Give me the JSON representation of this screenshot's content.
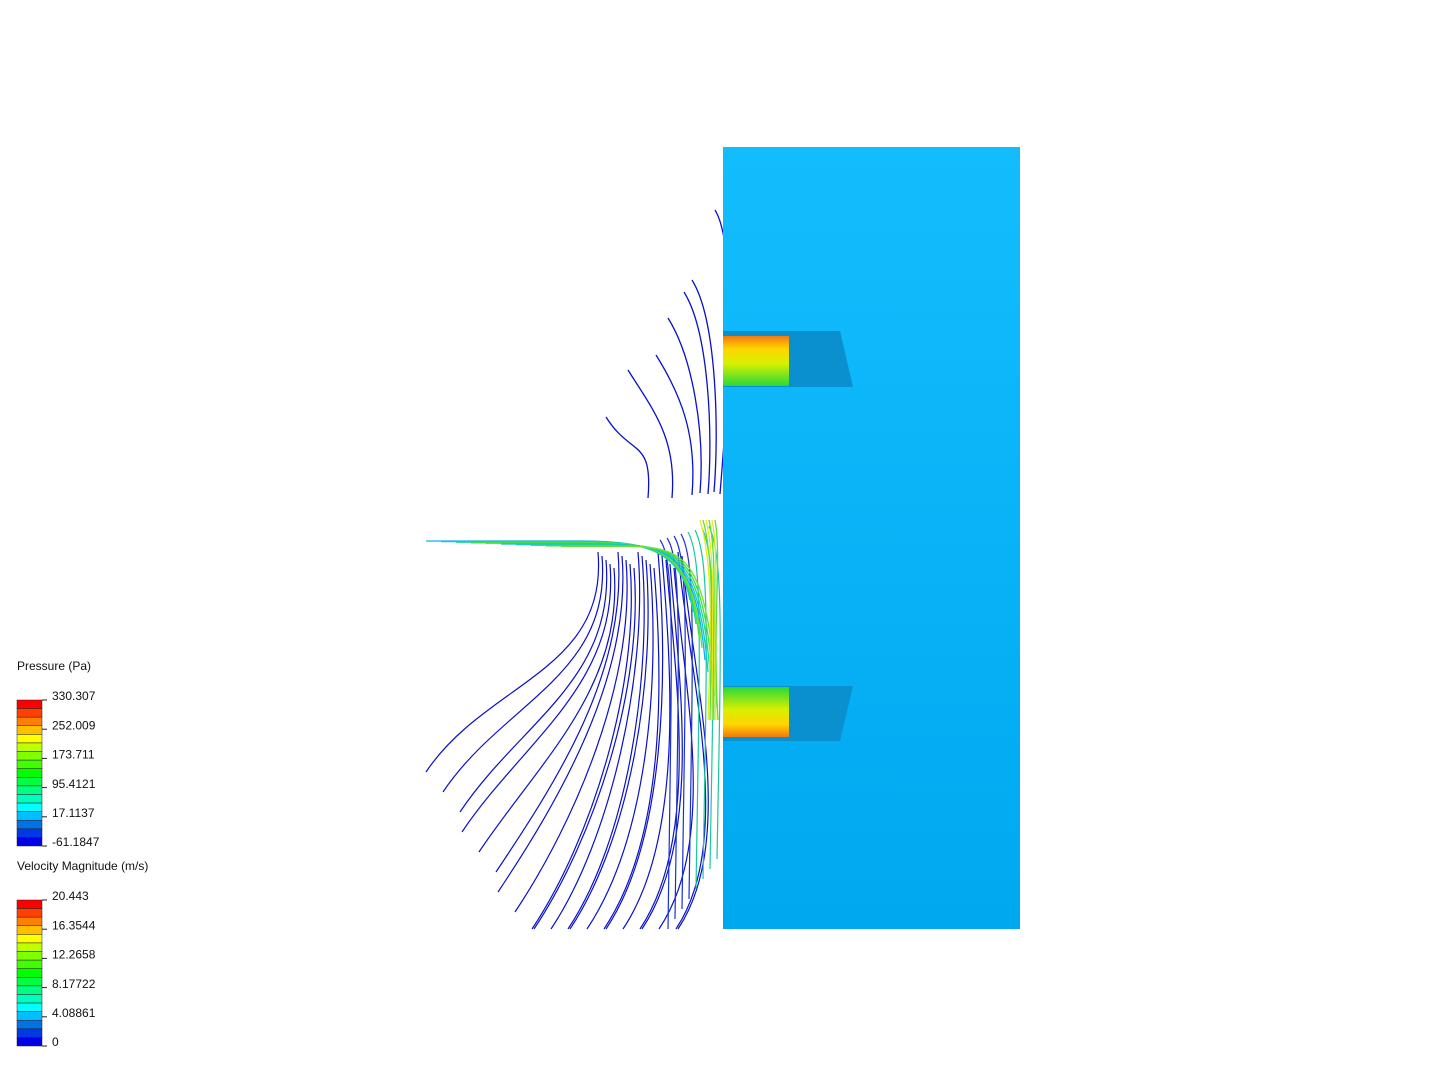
{
  "legends": [
    {
      "title": "Pressure (Pa)",
      "ticks": [
        330.307,
        252.009,
        173.711,
        95.4121,
        17.1137,
        -61.1847
      ]
    },
    {
      "title": "Velocity Magnitude (m/s)",
      "ticks": [
        20.443,
        16.3544,
        12.2658,
        8.17722,
        4.08861,
        0
      ]
    }
  ]
}
